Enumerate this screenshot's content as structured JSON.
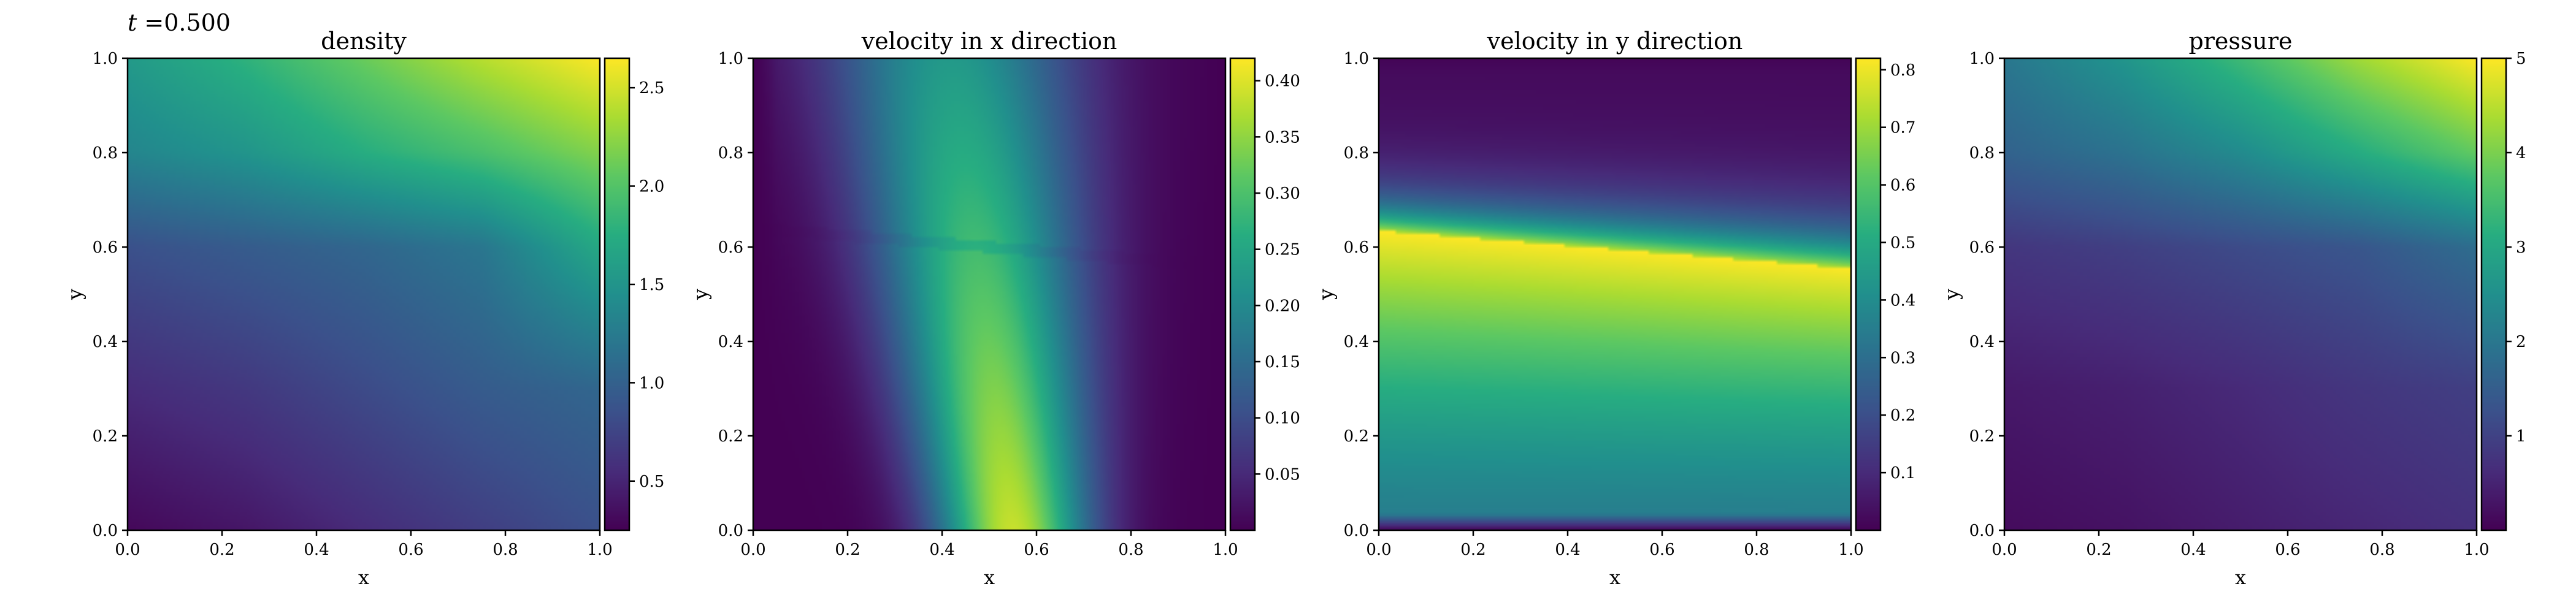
{
  "figure": {
    "annotation": {
      "symbol": "t",
      "text": " =0.500"
    }
  },
  "chart_data": [
    {
      "type": "heatmap",
      "title": "density",
      "xlabel": "x",
      "ylabel": "y",
      "xlim": [
        0.0,
        1.0
      ],
      "ylim": [
        0.0,
        1.0
      ],
      "xticks": [
        "0.0",
        "0.2",
        "0.4",
        "0.6",
        "0.8",
        "1.0"
      ],
      "yticks": [
        "0.0",
        "0.2",
        "0.4",
        "0.6",
        "0.8",
        "1.0"
      ],
      "colorbar": {
        "range": [
          0.25,
          2.65
        ],
        "ticks": [
          0.5,
          1.0,
          1.5,
          2.0,
          2.5
        ],
        "tick_labels": [
          "0.5",
          "1.0",
          "1.5",
          "2.0",
          "2.5"
        ],
        "colormap": "viridis"
      },
      "field": "density",
      "x_samples": [
        0.0,
        0.25,
        0.5,
        0.75,
        1.0
      ],
      "y_samples": [
        0.0,
        0.3,
        0.6,
        0.8,
        1.0
      ],
      "values_by_y": [
        [
          0.3,
          0.4,
          0.55,
          0.7,
          0.85
        ],
        [
          0.55,
          0.65,
          0.8,
          0.95,
          1.05
        ],
        [
          0.85,
          0.95,
          1.05,
          1.2,
          1.7
        ],
        [
          1.35,
          1.5,
          1.75,
          1.95,
          2.2
        ],
        [
          1.55,
          1.8,
          2.1,
          2.4,
          2.65
        ]
      ]
    },
    {
      "type": "heatmap",
      "title": "velocity in x direction",
      "xlabel": "x",
      "ylabel": "y",
      "xlim": [
        0.0,
        1.0
      ],
      "ylim": [
        0.0,
        1.0
      ],
      "xticks": [
        "0.0",
        "0.2",
        "0.4",
        "0.6",
        "0.8",
        "1.0"
      ],
      "yticks": [
        "0.0",
        "0.2",
        "0.4",
        "0.6",
        "0.8",
        "1.0"
      ],
      "colorbar": {
        "range": [
          0.0,
          0.42
        ],
        "ticks": [
          0.05,
          0.1,
          0.15,
          0.2,
          0.25,
          0.3,
          0.35,
          0.4
        ],
        "tick_labels": [
          "0.05",
          "0.10",
          "0.15",
          "0.20",
          "0.25",
          "0.30",
          "0.35",
          "0.40"
        ],
        "colormap": "viridis"
      },
      "field": "u",
      "peak_value": 0.42,
      "peak_x_at_y0": 0.55,
      "peak_x_at_y1": 0.42,
      "front_y": [
        0.64,
        0.56
      ]
    },
    {
      "type": "heatmap",
      "title": "velocity in y direction",
      "xlabel": "x",
      "ylabel": "y",
      "xlim": [
        0.0,
        1.0
      ],
      "ylim": [
        0.0,
        1.0
      ],
      "xticks": [
        "0.0",
        "0.2",
        "0.4",
        "0.6",
        "0.8",
        "1.0"
      ],
      "yticks": [
        "0.0",
        "0.2",
        "0.4",
        "0.6",
        "0.8",
        "1.0"
      ],
      "colorbar": {
        "range": [
          0.0,
          0.82
        ],
        "ticks": [
          0.1,
          0.2,
          0.3,
          0.4,
          0.5,
          0.6,
          0.7,
          0.8
        ],
        "tick_labels": [
          "0.1",
          "0.2",
          "0.3",
          "0.4",
          "0.5",
          "0.6",
          "0.7",
          "0.8"
        ],
        "colormap": "viridis"
      },
      "field": "v",
      "peak_value": 0.82,
      "front_y": [
        0.635,
        0.555
      ]
    },
    {
      "type": "heatmap",
      "title": "pressure",
      "xlabel": "x",
      "ylabel": "y",
      "xlim": [
        0.0,
        1.0
      ],
      "ylim": [
        0.0,
        1.0
      ],
      "xticks": [
        "0.0",
        "0.2",
        "0.4",
        "0.6",
        "0.8",
        "1.0"
      ],
      "yticks": [
        "0.0",
        "0.2",
        "0.4",
        "0.6",
        "0.8",
        "1.0"
      ],
      "colorbar": {
        "range": [
          0.0,
          5.0
        ],
        "ticks": [
          1,
          2,
          3,
          4,
          5
        ],
        "tick_labels": [
          "1",
          "2",
          "3",
          "4",
          "5"
        ],
        "colormap": "viridis"
      },
      "field": "pressure",
      "x_samples": [
        0.0,
        0.25,
        0.5,
        0.75,
        1.0
      ],
      "y_samples": [
        0.0,
        0.3,
        0.6,
        0.8,
        1.0
      ],
      "values_by_y": [
        [
          0.15,
          0.25,
          0.4,
          0.55,
          0.7
        ],
        [
          0.35,
          0.45,
          0.6,
          0.8,
          0.95
        ],
        [
          0.8,
          0.95,
          1.15,
          1.35,
          1.8
        ],
        [
          1.6,
          1.9,
          2.4,
          3.1,
          3.8
        ],
        [
          2.0,
          2.6,
          3.4,
          4.3,
          5.0
        ]
      ]
    }
  ]
}
